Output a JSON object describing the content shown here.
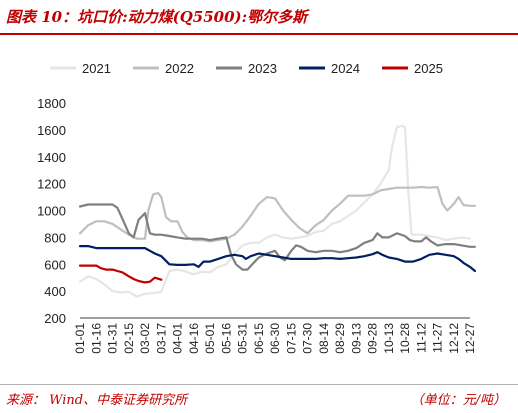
{
  "header": {
    "title": "图表 10：坑口价:动力煤(Q5500):鄂尔多斯"
  },
  "footer": {
    "source": "来源：  Wind、中泰证券研究所",
    "unit": "（单位：元/吨）"
  },
  "chart_data": {
    "type": "line",
    "title": "",
    "xlabel": "",
    "ylabel": "",
    "ylim": [
      200,
      1800
    ],
    "yticks": [
      200,
      400,
      600,
      800,
      1000,
      1200,
      1400,
      1600,
      1800
    ],
    "x_tick_labels": [
      "01-01",
      "01-16",
      "01-31",
      "02-15",
      "03-02",
      "03-17",
      "04-01",
      "04-16",
      "05-01",
      "05-16",
      "05-31",
      "06-15",
      "06-30",
      "07-15",
      "07-30",
      "08-14",
      "08-29",
      "09-13",
      "09-28",
      "10-13",
      "10-28",
      "11-12",
      "11-27",
      "12-12",
      "12-27"
    ],
    "grid": false,
    "legend_position": "top",
    "series": [
      {
        "name": "2021",
        "color": "#e6e6e6",
        "points": [
          [
            0,
            470
          ],
          [
            0.5,
            510
          ],
          [
            1,
            490
          ],
          [
            1.5,
            450
          ],
          [
            2,
            400
          ],
          [
            2.5,
            390
          ],
          [
            3,
            395
          ],
          [
            3.5,
            360
          ],
          [
            4,
            380
          ],
          [
            4.5,
            385
          ],
          [
            5,
            395
          ],
          [
            5.5,
            550
          ],
          [
            6,
            560
          ],
          [
            6.5,
            545
          ],
          [
            7,
            525
          ],
          [
            7.5,
            545
          ],
          [
            8,
            540
          ],
          [
            8.5,
            580
          ],
          [
            9,
            600
          ],
          [
            9.5,
            680
          ],
          [
            10,
            740
          ],
          [
            10.5,
            760
          ],
          [
            11,
            760
          ],
          [
            11.5,
            800
          ],
          [
            12,
            820
          ],
          [
            12.5,
            800
          ],
          [
            13,
            790
          ],
          [
            13.5,
            800
          ],
          [
            14,
            810
          ],
          [
            14.5,
            840
          ],
          [
            15,
            850
          ],
          [
            15.5,
            900
          ],
          [
            16,
            920
          ],
          [
            16.5,
            960
          ],
          [
            17,
            1000
          ],
          [
            17.5,
            1060
          ],
          [
            18,
            1120
          ],
          [
            18.5,
            1200
          ],
          [
            19,
            1300
          ],
          [
            19.2,
            1470
          ],
          [
            19.5,
            1620
          ],
          [
            19.8,
            1630
          ],
          [
            20,
            1620
          ],
          [
            20.2,
            1150
          ],
          [
            20.4,
            820
          ],
          [
            21,
            820
          ],
          [
            21.5,
            810
          ],
          [
            22,
            800
          ],
          [
            22.5,
            780
          ],
          [
            23,
            790
          ],
          [
            23.5,
            800
          ],
          [
            24,
            790
          ]
        ]
      },
      {
        "name": "2022",
        "color": "#bfbfbf",
        "points": [
          [
            0,
            830
          ],
          [
            0.5,
            890
          ],
          [
            1,
            920
          ],
          [
            1.5,
            920
          ],
          [
            2,
            900
          ],
          [
            2.5,
            860
          ],
          [
            3,
            820
          ],
          [
            3.5,
            790
          ],
          [
            4,
            790
          ],
          [
            4.2,
            1000
          ],
          [
            4.5,
            1120
          ],
          [
            4.8,
            1130
          ],
          [
            5,
            1100
          ],
          [
            5.3,
            950
          ],
          [
            5.6,
            920
          ],
          [
            6,
            920
          ],
          [
            6.3,
            840
          ],
          [
            6.6,
            800
          ],
          [
            7,
            780
          ],
          [
            7.5,
            780
          ],
          [
            8,
            770
          ],
          [
            8.5,
            780
          ],
          [
            9,
            790
          ],
          [
            9.5,
            820
          ],
          [
            10,
            880
          ],
          [
            10.5,
            960
          ],
          [
            11,
            1050
          ],
          [
            11.5,
            1100
          ],
          [
            12,
            1090
          ],
          [
            12.5,
            1000
          ],
          [
            13,
            930
          ],
          [
            13.5,
            870
          ],
          [
            14,
            830
          ],
          [
            14.5,
            890
          ],
          [
            15,
            930
          ],
          [
            15.5,
            1000
          ],
          [
            16,
            1050
          ],
          [
            16.5,
            1110
          ],
          [
            17,
            1110
          ],
          [
            17.5,
            1110
          ],
          [
            18,
            1120
          ],
          [
            18.5,
            1150
          ],
          [
            19,
            1160
          ],
          [
            19.5,
            1170
          ],
          [
            20,
            1170
          ],
          [
            20.5,
            1170
          ],
          [
            21,
            1175
          ],
          [
            21.5,
            1170
          ],
          [
            22,
            1175
          ],
          [
            22.3,
            1050
          ],
          [
            22.6,
            1000
          ],
          [
            23,
            1050
          ],
          [
            23.3,
            1100
          ],
          [
            23.6,
            1040
          ],
          [
            24,
            1035
          ],
          [
            24.3,
            1035
          ]
        ]
      },
      {
        "name": "2023",
        "color": "#7f7f7f",
        "points": [
          [
            0,
            1030
          ],
          [
            0.5,
            1045
          ],
          [
            1,
            1045
          ],
          [
            1.5,
            1045
          ],
          [
            2,
            1045
          ],
          [
            2.3,
            1020
          ],
          [
            2.6,
            940
          ],
          [
            3,
            830
          ],
          [
            3.3,
            800
          ],
          [
            3.6,
            930
          ],
          [
            4,
            980
          ],
          [
            4.3,
            830
          ],
          [
            4.6,
            820
          ],
          [
            5,
            820
          ],
          [
            5.5,
            810
          ],
          [
            6,
            800
          ],
          [
            6.5,
            790
          ],
          [
            7,
            790
          ],
          [
            7.5,
            790
          ],
          [
            8,
            780
          ],
          [
            8.5,
            790
          ],
          [
            9,
            800
          ],
          [
            9.3,
            670
          ],
          [
            9.6,
            600
          ],
          [
            10,
            560
          ],
          [
            10.3,
            560
          ],
          [
            10.6,
            600
          ],
          [
            11,
            650
          ],
          [
            11.5,
            680
          ],
          [
            12,
            700
          ],
          [
            12.3,
            650
          ],
          [
            12.6,
            630
          ],
          [
            13,
            700
          ],
          [
            13.3,
            740
          ],
          [
            13.6,
            730
          ],
          [
            14,
            700
          ],
          [
            14.5,
            690
          ],
          [
            15,
            700
          ],
          [
            15.5,
            700
          ],
          [
            16,
            690
          ],
          [
            16.5,
            700
          ],
          [
            17,
            720
          ],
          [
            17.5,
            760
          ],
          [
            18,
            780
          ],
          [
            18.3,
            830
          ],
          [
            18.6,
            800
          ],
          [
            19,
            800
          ],
          [
            19.5,
            830
          ],
          [
            20,
            810
          ],
          [
            20.3,
            780
          ],
          [
            20.6,
            770
          ],
          [
            21,
            770
          ],
          [
            21.3,
            800
          ],
          [
            21.6,
            770
          ],
          [
            22,
            740
          ],
          [
            22.5,
            750
          ],
          [
            23,
            750
          ],
          [
            23.5,
            740
          ],
          [
            24,
            730
          ],
          [
            24.3,
            730
          ]
        ]
      },
      {
        "name": "2024",
        "color": "#002060",
        "points": [
          [
            0,
            735
          ],
          [
            0.5,
            735
          ],
          [
            1,
            720
          ],
          [
            1.5,
            720
          ],
          [
            2,
            720
          ],
          [
            2.5,
            720
          ],
          [
            3,
            720
          ],
          [
            3.5,
            720
          ],
          [
            4,
            720
          ],
          [
            4.3,
            700
          ],
          [
            4.6,
            680
          ],
          [
            5,
            660
          ],
          [
            5.5,
            600
          ],
          [
            6,
            595
          ],
          [
            6.5,
            595
          ],
          [
            7,
            600
          ],
          [
            7.3,
            580
          ],
          [
            7.6,
            620
          ],
          [
            8,
            620
          ],
          [
            8.5,
            640
          ],
          [
            9,
            660
          ],
          [
            9.5,
            670
          ],
          [
            10,
            660
          ],
          [
            10.2,
            640
          ],
          [
            10.5,
            660
          ],
          [
            11,
            680
          ],
          [
            11.5,
            670
          ],
          [
            12,
            660
          ],
          [
            12.5,
            650
          ],
          [
            13,
            640
          ],
          [
            13.5,
            640
          ],
          [
            14,
            640
          ],
          [
            14.5,
            640
          ],
          [
            15,
            645
          ],
          [
            15.5,
            645
          ],
          [
            16,
            640
          ],
          [
            16.5,
            645
          ],
          [
            17,
            650
          ],
          [
            17.5,
            660
          ],
          [
            18,
            675
          ],
          [
            18.3,
            690
          ],
          [
            18.6,
            670
          ],
          [
            19,
            650
          ],
          [
            19.5,
            640
          ],
          [
            20,
            620
          ],
          [
            20.5,
            620
          ],
          [
            21,
            640
          ],
          [
            21.5,
            670
          ],
          [
            22,
            680
          ],
          [
            22.5,
            670
          ],
          [
            23,
            660
          ],
          [
            23.3,
            640
          ],
          [
            23.6,
            610
          ],
          [
            24,
            580
          ],
          [
            24.3,
            550
          ]
        ]
      },
      {
        "name": "2025",
        "color": "#c00000",
        "points": [
          [
            0,
            590
          ],
          [
            0.5,
            590
          ],
          [
            1,
            590
          ],
          [
            1.3,
            570
          ],
          [
            1.6,
            560
          ],
          [
            2,
            560
          ],
          [
            2.3,
            550
          ],
          [
            2.6,
            540
          ],
          [
            3,
            510
          ],
          [
            3.3,
            490
          ],
          [
            3.6,
            475
          ],
          [
            4,
            465
          ],
          [
            4.3,
            470
          ],
          [
            4.6,
            500
          ],
          [
            5,
            485
          ]
        ]
      }
    ]
  }
}
